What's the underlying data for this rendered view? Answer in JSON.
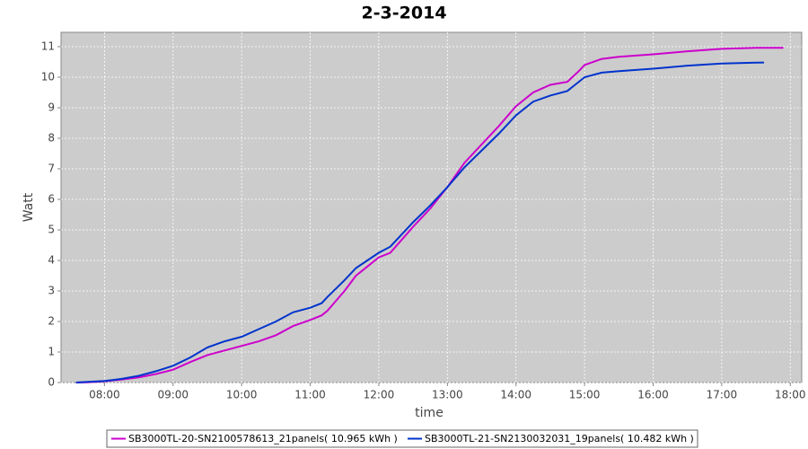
{
  "chart_data": {
    "type": "line",
    "title": "2-3-2014",
    "x_label": "time",
    "y_label": "Watt",
    "xlim": [
      "07:22",
      "18:10"
    ],
    "xticks": [
      "08:00",
      "09:00",
      "10:00",
      "11:00",
      "12:00",
      "13:00",
      "14:00",
      "15:00",
      "16:00",
      "17:00",
      "18:00"
    ],
    "ylim": [
      0,
      11.47
    ],
    "yticks": [
      0,
      1,
      2,
      3,
      4,
      5,
      6,
      7,
      8,
      9,
      10,
      11
    ],
    "grid": true,
    "legend": "bottom",
    "series": [
      {
        "name": "SB3000TL-20-SN2100578613_21panels( 10.965 kWh )",
        "color": "#cc00cc",
        "x": [
          "07:35",
          "07:45",
          "08:00",
          "08:15",
          "08:30",
          "08:45",
          "09:00",
          "09:15",
          "09:30",
          "09:45",
          "10:00",
          "10:15",
          "10:30",
          "10:45",
          "11:00",
          "11:10",
          "11:15",
          "11:30",
          "11:40",
          "11:50",
          "12:00",
          "12:10",
          "12:30",
          "12:45",
          "13:00",
          "13:15",
          "13:30",
          "13:45",
          "14:00",
          "14:15",
          "14:30",
          "14:45",
          "14:55",
          "15:00",
          "15:15",
          "15:30",
          "16:00",
          "16:30",
          "17:00",
          "17:30",
          "17:54"
        ],
        "values": [
          0,
          0.01,
          0.04,
          0.1,
          0.17,
          0.28,
          0.42,
          0.67,
          0.9,
          1.05,
          1.2,
          1.35,
          1.55,
          1.85,
          2.05,
          2.2,
          2.35,
          3.0,
          3.5,
          3.8,
          4.1,
          4.25,
          5.1,
          5.7,
          6.4,
          7.2,
          7.8,
          8.4,
          9.05,
          9.5,
          9.75,
          9.85,
          10.2,
          10.4,
          10.6,
          10.67,
          10.75,
          10.85,
          10.93,
          10.96,
          10.965
        ]
      },
      {
        "name": "SB3000TL-21-SN2130032031_19panels( 10.482 kWh )",
        "color": "#0033cc",
        "x": [
          "07:35",
          "07:45",
          "08:00",
          "08:15",
          "08:30",
          "08:45",
          "09:00",
          "09:15",
          "09:30",
          "09:45",
          "10:00",
          "10:15",
          "10:30",
          "10:45",
          "11:00",
          "11:10",
          "11:15",
          "11:30",
          "11:40",
          "11:50",
          "12:00",
          "12:10",
          "12:30",
          "12:45",
          "13:00",
          "13:15",
          "13:30",
          "13:45",
          "14:00",
          "14:15",
          "14:30",
          "14:45",
          "14:55",
          "15:00",
          "15:15",
          "15:30",
          "16:00",
          "16:30",
          "17:00",
          "17:30",
          "17:37"
        ],
        "values": [
          0,
          0.02,
          0.05,
          0.12,
          0.22,
          0.37,
          0.55,
          0.82,
          1.15,
          1.35,
          1.5,
          1.75,
          2.0,
          2.3,
          2.45,
          2.6,
          2.8,
          3.35,
          3.75,
          4.0,
          4.25,
          4.45,
          5.25,
          5.8,
          6.4,
          7.05,
          7.6,
          8.15,
          8.75,
          9.2,
          9.4,
          9.55,
          9.85,
          10.0,
          10.15,
          10.2,
          10.28,
          10.38,
          10.45,
          10.48,
          10.482
        ]
      }
    ]
  }
}
